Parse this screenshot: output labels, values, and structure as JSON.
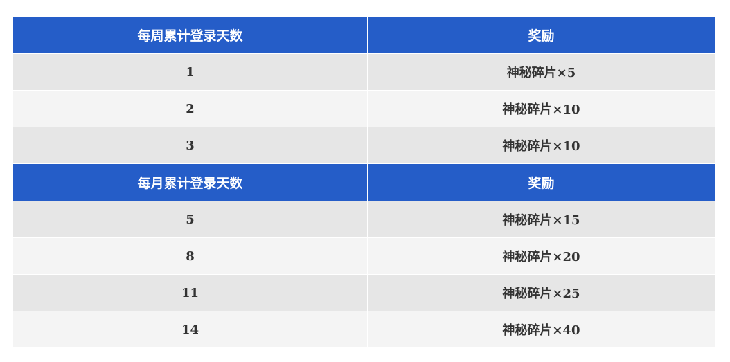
{
  "colors": {
    "header_bg": "#255dc8",
    "row_odd": "#e6e6e6",
    "row_even": "#f4f4f4"
  },
  "weekly": {
    "headers": [
      "每周累计登录天数",
      "奖励"
    ],
    "rows": [
      [
        "1",
        "神秘碎片×5"
      ],
      [
        "2",
        "神秘碎片×10"
      ],
      [
        "3",
        "神秘碎片×10"
      ]
    ]
  },
  "monthly": {
    "headers": [
      "每月累计登录天数",
      "奖励"
    ],
    "rows": [
      [
        "5",
        "神秘碎片×15"
      ],
      [
        "8",
        "神秘碎片×20"
      ],
      [
        "11",
        "神秘碎片×25"
      ],
      [
        "14",
        "神秘碎片×40"
      ]
    ]
  }
}
